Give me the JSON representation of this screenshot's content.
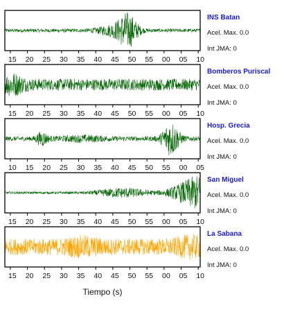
{
  "chart_data": {
    "type": "line",
    "xlabel": "Tiempo (s)",
    "grid": false,
    "panels": [
      {
        "station": "INS Batan",
        "accel_label": "Acel. Max. 0.0",
        "jma_label": "Int JMA: 0",
        "color": "#006400",
        "noise": 0.09,
        "bursts": [
          {
            "center": 0.63,
            "width": 0.035,
            "amp": 0.75
          },
          {
            "center": 0.56,
            "width": 0.06,
            "amp": 0.25
          }
        ],
        "tick_labels": [
          "15",
          "20",
          "25",
          "30",
          "35",
          "40",
          "45",
          "50",
          "55",
          "00",
          "05",
          "10"
        ]
      },
      {
        "station": "Bomberos Puriscal",
        "accel_label": "Acel. Max. 0.0",
        "jma_label": "Int JMA: 0",
        "color": "#006400",
        "noise": 0.3,
        "bursts": [
          {
            "center": 0.04,
            "width": 0.04,
            "amp": 0.35
          }
        ],
        "tick_labels": [
          "15",
          "20",
          "25",
          "30",
          "35",
          "40",
          "45",
          "50",
          "55",
          "00",
          "05",
          "10"
        ]
      },
      {
        "station": "Hosp. Grecia",
        "accel_label": "Acel. Max. 0.0",
        "jma_label": "Int JMA: 0",
        "color": "#006400",
        "noise": 0.12,
        "bursts": [
          {
            "center": 0.85,
            "width": 0.03,
            "amp": 0.8
          },
          {
            "center": 0.19,
            "width": 0.02,
            "amp": 0.3
          },
          {
            "center": 0.4,
            "width": 0.08,
            "amp": 0.1
          }
        ],
        "tick_labels": [
          "10",
          "15",
          "20",
          "25",
          "30",
          "35",
          "40",
          "45",
          "50",
          "55",
          "00",
          "05"
        ]
      },
      {
        "station": "San Miguel",
        "accel_label": "Acel. Max. 0.0",
        "jma_label": "Int JMA: 0",
        "color": "#006400",
        "noise": 0.06,
        "bursts": [
          {
            "center": 0.6,
            "width": 0.09,
            "amp": 0.22
          },
          {
            "center": 1.0,
            "width": 0.09,
            "amp": 0.85
          }
        ],
        "tick_labels": [
          "15",
          "20",
          "25",
          "30",
          "35",
          "40",
          "45",
          "50",
          "55",
          "00",
          "05",
          "10"
        ]
      },
      {
        "station": "La Sabana",
        "accel_label": "Acel. Max. 0.0",
        "jma_label": "Int JMA: 0",
        "color": "#ffa500",
        "noise": 0.42,
        "bursts": [
          {
            "center": 0.4,
            "width": 0.06,
            "amp": 0.2
          },
          {
            "center": 0.95,
            "width": 0.05,
            "amp": 0.25
          }
        ],
        "tick_labels": [
          "15",
          "20",
          "25",
          "30",
          "35",
          "40",
          "45",
          "50",
          "55",
          "00",
          "05",
          "10"
        ]
      }
    ]
  }
}
